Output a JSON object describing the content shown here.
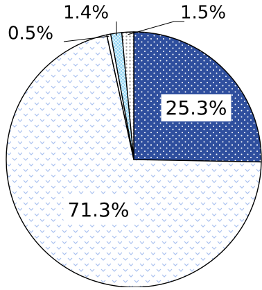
{
  "chart_data": {
    "type": "pie",
    "title": "",
    "slices": [
      {
        "label": "25.3%",
        "value": 25.3,
        "color": "#2f4f9e",
        "pattern": "dots-on-dark"
      },
      {
        "label": "71.3%",
        "value": 71.3,
        "color": "#a9c1f0",
        "pattern": "light-chevrons"
      },
      {
        "label": "0.5%",
        "value": 0.5,
        "color": "#ffffff",
        "pattern": "plain"
      },
      {
        "label": "1.4%",
        "value": 1.4,
        "color": "#8fd3f2",
        "pattern": "light-cross"
      },
      {
        "label": "1.5%",
        "value": 1.5,
        "color": "#cfcfcf",
        "pattern": "gray-dots"
      }
    ],
    "start": "top",
    "direction": "clockwise",
    "legend": "none",
    "label_style": {
      "inside": [
        "25.3%",
        "71.3%"
      ],
      "outside_with_leaders": [
        "0.5%",
        "1.4%",
        "1.5%"
      ]
    }
  }
}
